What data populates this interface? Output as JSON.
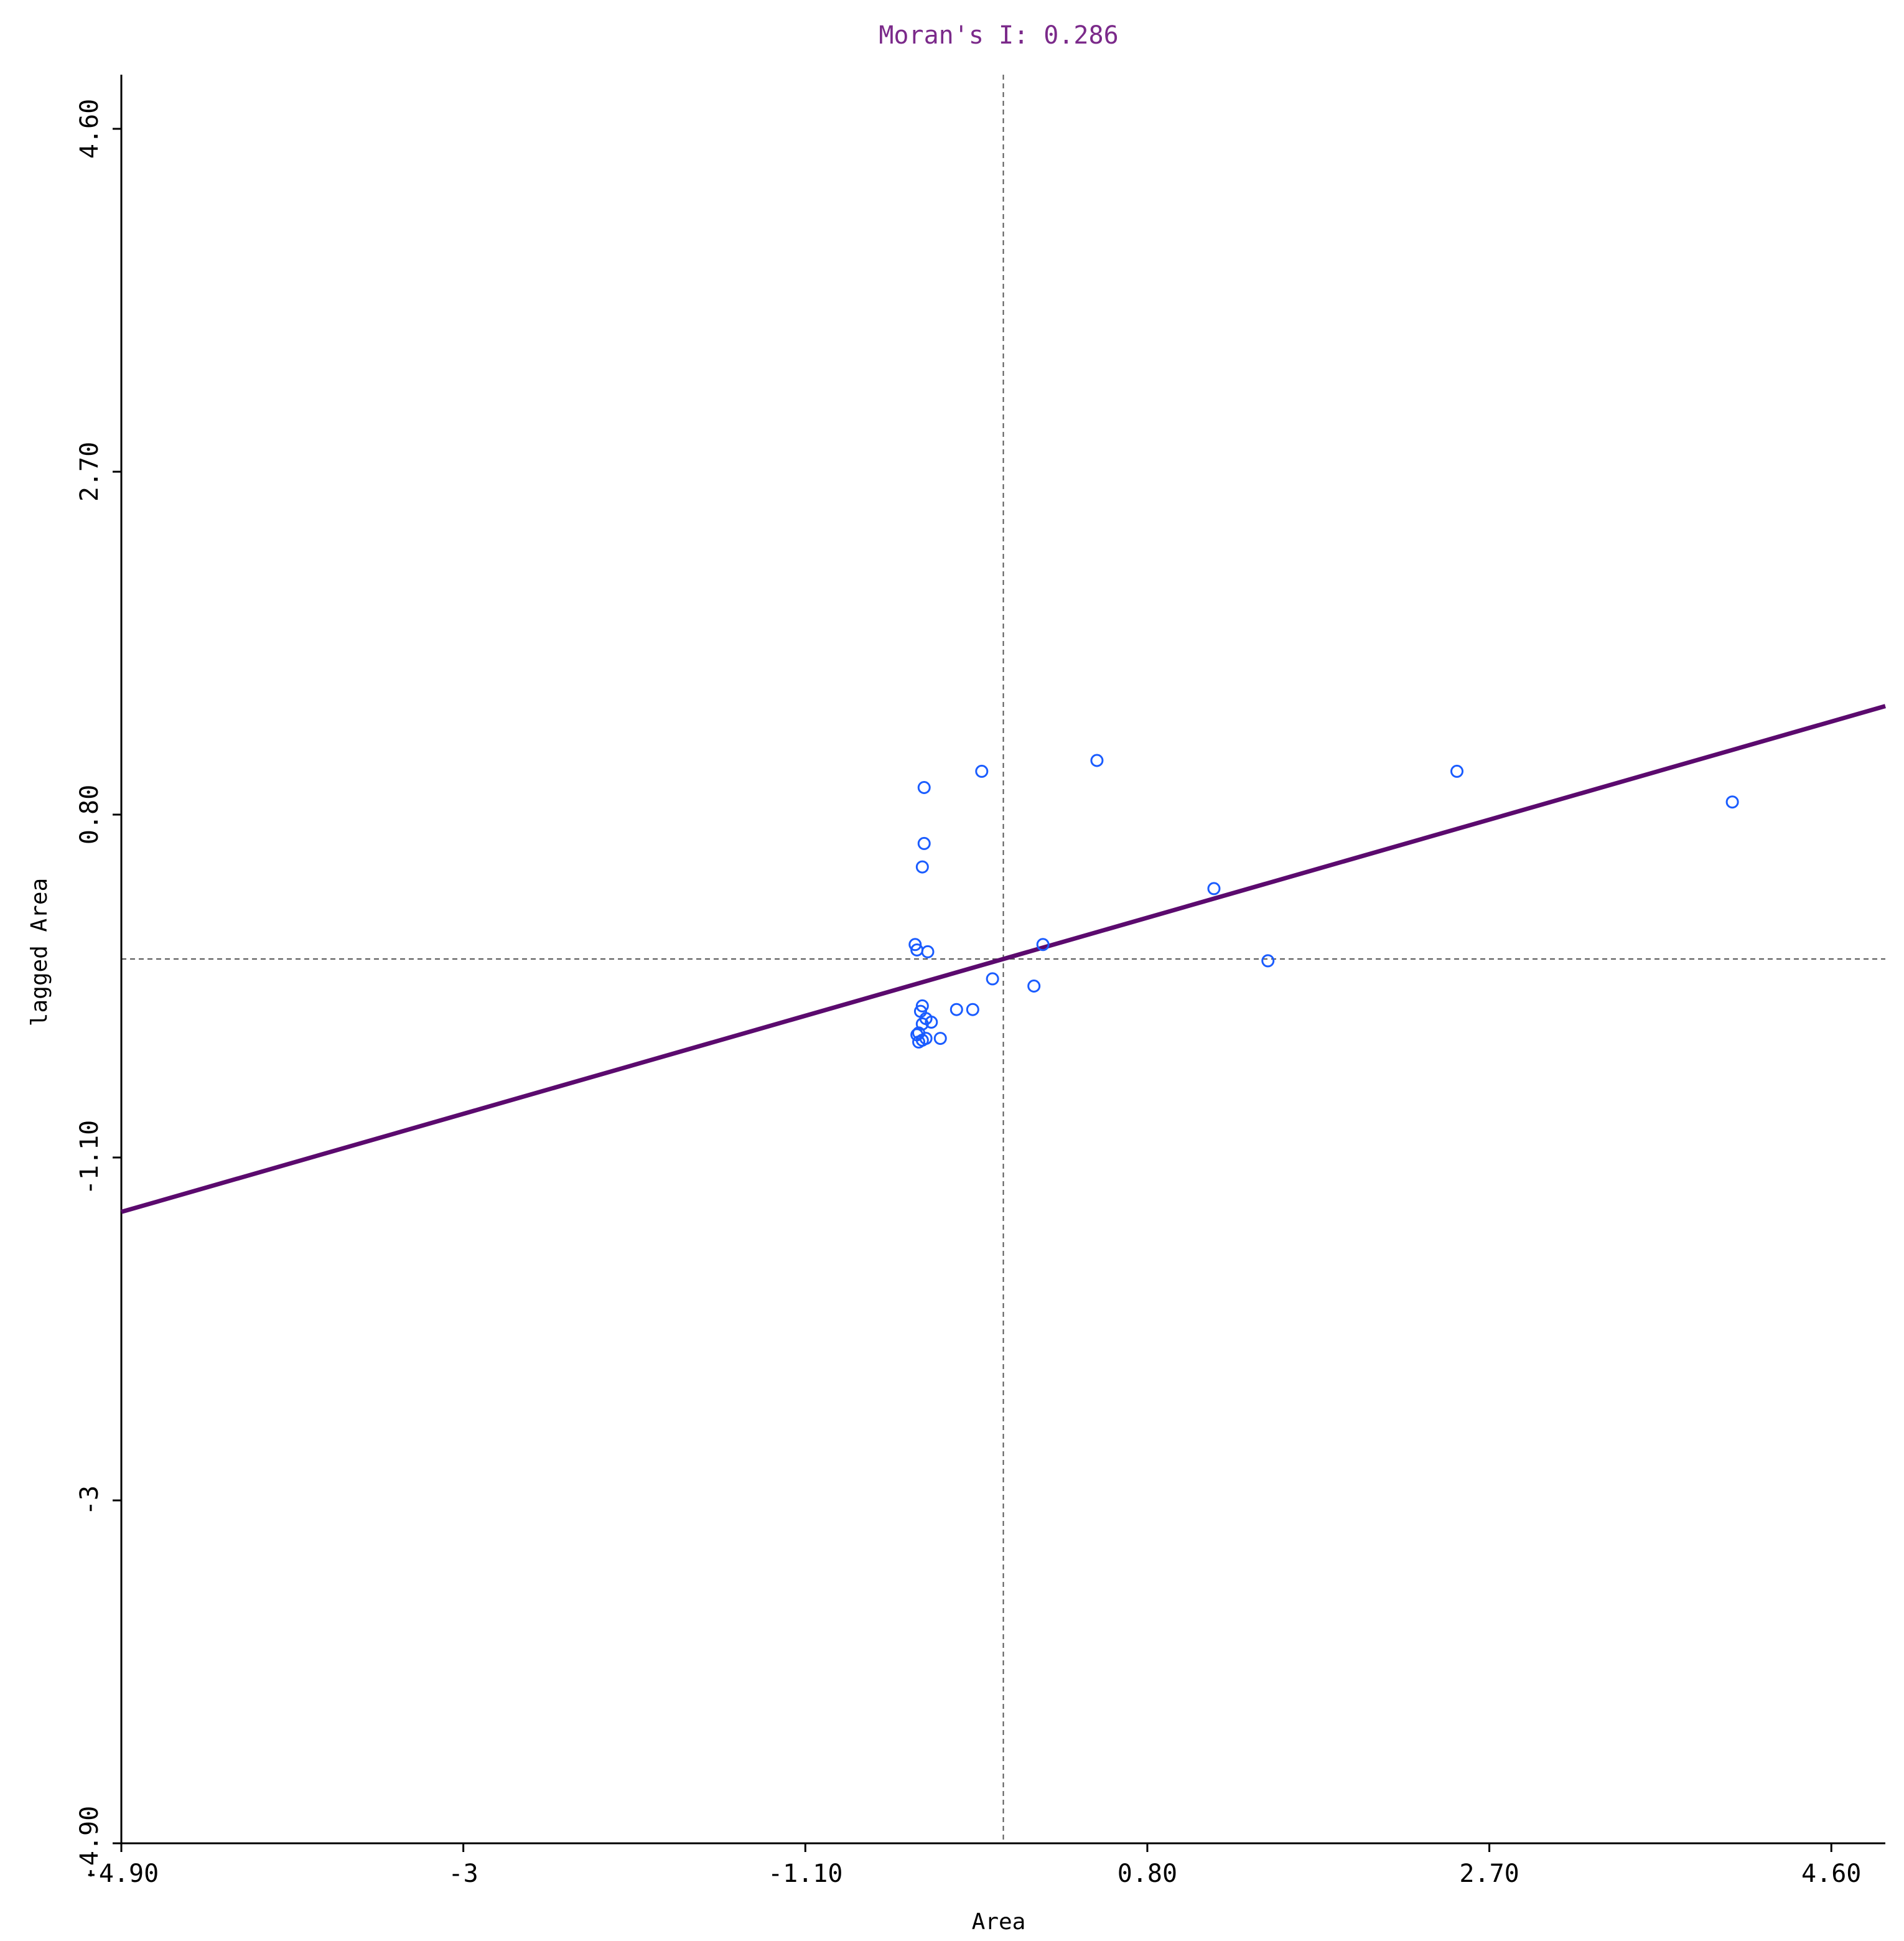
{
  "chart_data": {
    "type": "scatter",
    "title": "Moran's I: 0.286",
    "xlabel": "Area",
    "ylabel": "lagged Area",
    "xlim": [
      -4.9,
      4.9
    ],
    "ylim": [
      -4.9,
      4.9
    ],
    "x_ticks": [
      -4.9,
      -3,
      -1.1,
      0.8,
      2.7,
      4.6
    ],
    "x_tick_labels": [
      "-4.90",
      "-3",
      "-1.10",
      "0.80",
      "2.70",
      "4.60"
    ],
    "y_ticks": [
      -4.9,
      -3,
      -1.1,
      0.8,
      2.7,
      4.6
    ],
    "y_tick_labels": [
      "-4.90",
      "-3",
      "-1.10",
      "0.80",
      "2.70",
      "4.60"
    ],
    "reference_lines": {
      "x": 0,
      "y": 0
    },
    "regression_line": {
      "slope": 0.286,
      "intercept": 0
    },
    "colors": {
      "points": "#1a5cff",
      "line": "#5b0a6e",
      "title": "#7b2a8a",
      "reference": "#555555"
    },
    "points": [
      [
        -0.44,
        0.95
      ],
      [
        -0.12,
        1.04
      ],
      [
        0.52,
        1.1
      ],
      [
        2.52,
        1.04
      ],
      [
        4.05,
        0.87
      ],
      [
        -0.44,
        0.64
      ],
      [
        -0.45,
        0.51
      ],
      [
        1.17,
        0.39
      ],
      [
        -0.49,
        0.08
      ],
      [
        -0.48,
        0.05
      ],
      [
        -0.42,
        0.04
      ],
      [
        0.22,
        0.08
      ],
      [
        1.47,
        -0.01
      ],
      [
        -0.06,
        -0.11
      ],
      [
        0.17,
        -0.15
      ],
      [
        -0.45,
        -0.26
      ],
      [
        -0.46,
        -0.29
      ],
      [
        -0.26,
        -0.28
      ],
      [
        -0.17,
        -0.28
      ],
      [
        -0.43,
        -0.33
      ],
      [
        -0.4,
        -0.35
      ],
      [
        -0.45,
        -0.36
      ],
      [
        -0.47,
        -0.41
      ],
      [
        -0.48,
        -0.42
      ],
      [
        -0.43,
        -0.44
      ],
      [
        -0.35,
        -0.44
      ],
      [
        -0.45,
        -0.45
      ],
      [
        -0.47,
        -0.46
      ]
    ]
  }
}
